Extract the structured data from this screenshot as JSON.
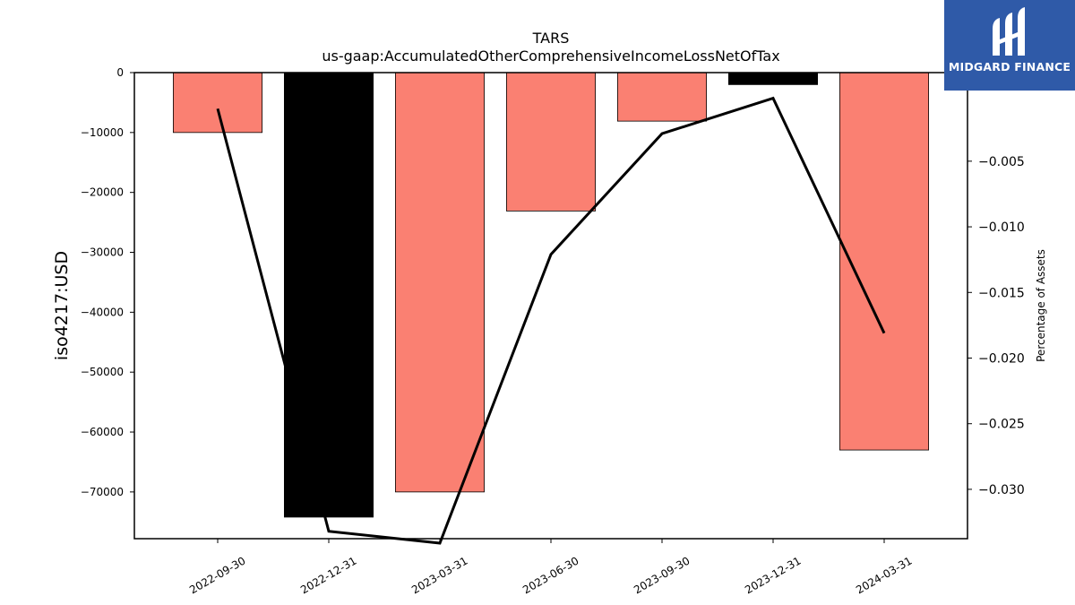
{
  "logo": {
    "text": "MIDGARD FINANCE"
  },
  "colors": {
    "positive_bar": "#fa8072",
    "highlight_bar": "#000000",
    "line": "#000000",
    "logo_bg": "#2f5aa8"
  },
  "chart_data": {
    "type": "bar",
    "title": "TARS",
    "subtitle": "us-gaap:AccumulatedOtherComprehensiveIncomeLossNetOfTax",
    "ylabel": "iso4217:USD",
    "y2label": "Percentage of Assets",
    "categories": [
      "2022-09-30",
      "2022-12-31",
      "2023-03-31",
      "2023-06-30",
      "2023-09-30",
      "2023-12-31",
      "2024-03-31"
    ],
    "series": [
      {
        "values": [
          -10000,
          -74200,
          -70000,
          -23100,
          -8100,
          -2000,
          -63000
        ],
        "axis": "left"
      },
      {
        "values": [
          -0.001,
          -0.0332,
          -0.0341,
          -0.0121,
          -0.0029,
          -0.0002,
          -0.0181
        ],
        "axis": "right"
      }
    ],
    "bar_colors": [
      "#fa8072",
      "#000000",
      "#fa8072",
      "#fa8072",
      "#fa8072",
      "#000000",
      "#fa8072"
    ],
    "ylim": [
      -77800,
      0
    ],
    "y2lim": [
      -0.03376,
      0.00175
    ],
    "yticks": [
      0,
      -10000,
      -20000,
      -30000,
      -40000,
      -50000,
      -60000,
      -70000
    ],
    "ytick_labels": [
      "0",
      "−10000",
      "−20000",
      "−30000",
      "−40000",
      "−50000",
      "−60000",
      "−70000"
    ],
    "y2ticks": [
      -0.005,
      -0.01,
      -0.015,
      -0.02,
      -0.025,
      -0.03
    ],
    "y2tick_labels": [
      "−0.005",
      "−0.010",
      "−0.015",
      "−0.020",
      "−0.025",
      "−0.030"
    ],
    "grid": false
  }
}
